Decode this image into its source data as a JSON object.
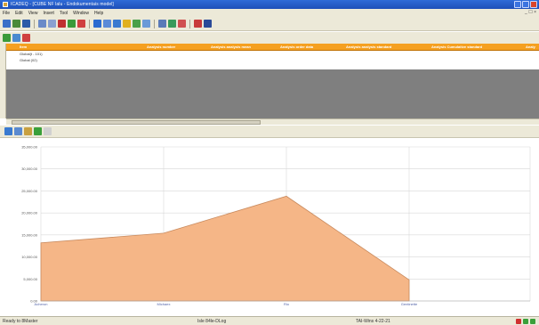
{
  "window": {
    "title": "ICADEQ - [CUBE NF lalu - Endokumentais model]"
  },
  "menu": {
    "items": [
      "File",
      "Edit",
      "View",
      "Insert",
      "Tool",
      "Window",
      "Help"
    ],
    "mdi_controls": "_ ☐ ×"
  },
  "grid": {
    "header_columns": [
      "Item",
      "Analysis number",
      "Analysis analysis mean",
      "Analysis order data",
      "Analysis analysis standard",
      "Analysis Cumulative standard",
      "Analy"
    ],
    "rows": [
      {
        "label": "Global(t - 101)"
      },
      {
        "label": "Global (02)"
      }
    ]
  },
  "chart_data": {
    "type": "area",
    "categories": [
      "Acheron",
      "Michaex",
      "Rio",
      "Gentinette"
    ],
    "values": [
      13200,
      15400,
      23800,
      4800
    ],
    "ylim": [
      0,
      35000
    ],
    "yticks": [
      "35,000.00",
      "30,000.00",
      "25,000.00",
      "20,000.00",
      "15,000.00",
      "10,000.00",
      "5,000.00",
      "0.00"
    ],
    "grid": true,
    "fill_color": "#f5b687",
    "line_color": "#c88a5e"
  },
  "status": {
    "left": "Ready to 8Master",
    "middle": "Isle 84le-DLog",
    "right": "TAI-Wins 4-22-21"
  },
  "colors": {
    "title_bar": "#1e4fb8",
    "grid_header": "#f5a020",
    "grid_empty": "#7f7f7f"
  }
}
